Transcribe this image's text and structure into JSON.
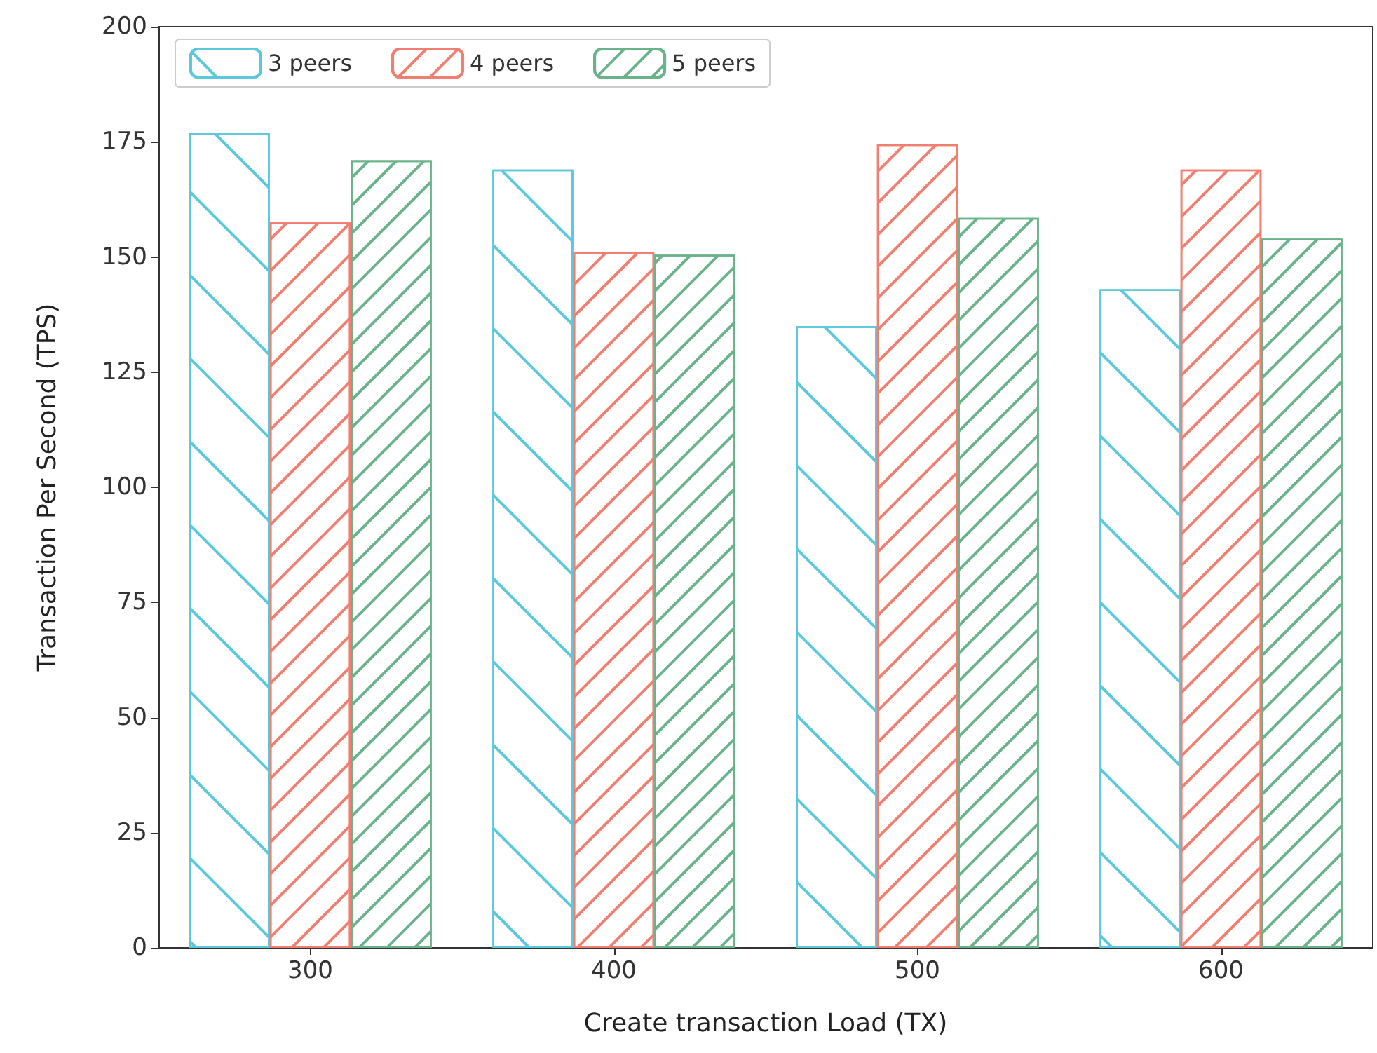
{
  "chart_data": {
    "type": "bar",
    "xlabel": "Create transaction Load (TX)",
    "ylabel": "Transaction Per Second (TPS)",
    "categories": [
      "300",
      "400",
      "500",
      "600"
    ],
    "series": [
      {
        "name": "3 peers",
        "color": "#5bc8dc",
        "values": [
          177,
          169,
          135,
          143
        ]
      },
      {
        "name": "4 peers",
        "color": "#f07f72",
        "values": [
          157.5,
          151,
          174.5,
          169
        ]
      },
      {
        "name": "5 peers",
        "color": "#6ab38a",
        "values": [
          171,
          150.5,
          158.5,
          154
        ]
      }
    ],
    "ylim": [
      0,
      200
    ],
    "yticks": [
      0,
      25,
      50,
      75,
      100,
      125,
      150,
      175,
      200
    ],
    "grid": false,
    "legend": "top left"
  }
}
